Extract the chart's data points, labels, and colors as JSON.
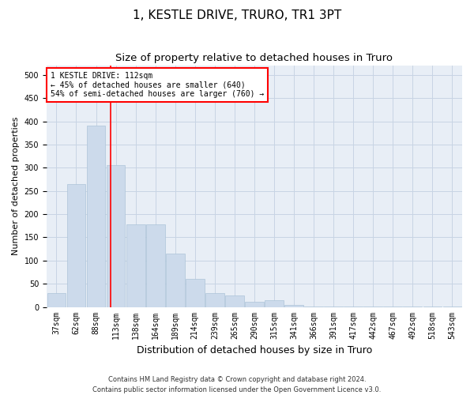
{
  "title": "1, KESTLE DRIVE, TRURO, TR1 3PT",
  "subtitle": "Size of property relative to detached houses in Truro",
  "xlabel": "Distribution of detached houses by size in Truro",
  "ylabel": "Number of detached properties",
  "footnote": "Contains HM Land Registry data © Crown copyright and database right 2024.\nContains public sector information licensed under the Open Government Licence v3.0.",
  "bins": [
    "37sqm",
    "62sqm",
    "88sqm",
    "113sqm",
    "138sqm",
    "164sqm",
    "189sqm",
    "214sqm",
    "239sqm",
    "265sqm",
    "290sqm",
    "315sqm",
    "341sqm",
    "366sqm",
    "391sqm",
    "417sqm",
    "442sqm",
    "467sqm",
    "492sqm",
    "518sqm",
    "543sqm"
  ],
  "values": [
    30,
    265,
    390,
    305,
    178,
    178,
    115,
    60,
    30,
    25,
    12,
    15,
    5,
    1,
    1,
    1,
    1,
    1,
    1,
    1,
    1
  ],
  "bar_color": "#ccdaeb",
  "bar_edge_color": "#adc4d9",
  "grid_color": "#c8d4e4",
  "background_color": "#e8eef6",
  "red_line_x": 2.75,
  "annotation_box": {
    "text_line1": "1 KESTLE DRIVE: 112sqm",
    "text_line2": "← 45% of detached houses are smaller (640)",
    "text_line3": "54% of semi-detached houses are larger (760) →",
    "box_color": "white",
    "edge_color": "red"
  },
  "ylim": [
    0,
    520
  ],
  "yticks": [
    0,
    50,
    100,
    150,
    200,
    250,
    300,
    350,
    400,
    450,
    500
  ],
  "title_fontsize": 11,
  "subtitle_fontsize": 9.5,
  "tick_fontsize": 7,
  "ylabel_fontsize": 8,
  "xlabel_fontsize": 9,
  "annotation_fontsize": 7,
  "footnote_fontsize": 6
}
